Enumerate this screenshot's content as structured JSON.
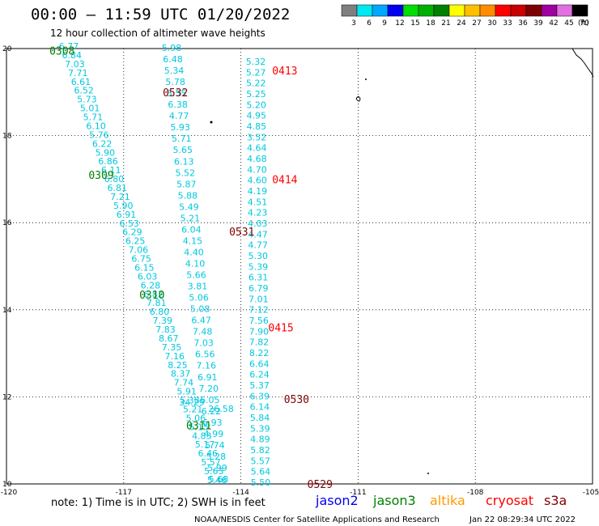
{
  "title": "00:00 – 11:59 UTC 01/20/2022",
  "subtitle": "12 hour collection of altimeter wave heights",
  "legend": {
    "unit": "(ft)",
    "bins": [
      {
        "label": "3",
        "color": "#7f7f7f"
      },
      {
        "label": "6",
        "color": "#00e8f0"
      },
      {
        "label": "9",
        "color": "#00a8ff"
      },
      {
        "label": "12",
        "color": "#0000ee"
      },
      {
        "label": "15",
        "color": "#00dd00"
      },
      {
        "label": "18",
        "color": "#00b000"
      },
      {
        "label": "21",
        "color": "#007f00"
      },
      {
        "label": "24",
        "color": "#ffff00"
      },
      {
        "label": "27",
        "color": "#ffc000"
      },
      {
        "label": "30",
        "color": "#ff8c00"
      },
      {
        "label": "33",
        "color": "#ff0000"
      },
      {
        "label": "36",
        "color": "#c80000"
      },
      {
        "label": "39",
        "color": "#7f0000"
      },
      {
        "label": "42",
        "color": "#a000a0"
      },
      {
        "label": "45",
        "color": "#e070e0"
      },
      {
        "label": "70",
        "color": "#000000"
      }
    ]
  },
  "axes": {
    "lon_ticks": [
      "-120",
      "-117",
      "-114",
      "-111",
      "-108",
      "-105"
    ],
    "lat_ticks": [
      "20",
      "18",
      "16",
      "14",
      "12",
      "10"
    ]
  },
  "colors": {
    "jason2": "#0000ee",
    "jason3": "#008000",
    "altika": "#ff9900",
    "cryosat": "#ff0000",
    "s3a": "#800000",
    "swh_text": "#00c8e0"
  },
  "passes": [
    {
      "label": "0308",
      "lat": 19.95,
      "lon": -118.9,
      "color": "#008000"
    },
    {
      "label": "0309",
      "lat": 17.1,
      "lon": -117.9,
      "color": "#008000"
    },
    {
      "label": "0310",
      "lat": 14.35,
      "lon": -116.6,
      "color": "#008000"
    },
    {
      "label": "0311",
      "lat": 11.35,
      "lon": -115.4,
      "color": "#008000"
    },
    {
      "label": "0413",
      "lat": 19.5,
      "lon": -113.2,
      "color": "#ff0000"
    },
    {
      "label": "0414",
      "lat": 17.0,
      "lon": -113.2,
      "color": "#ff0000"
    },
    {
      "label": "0415",
      "lat": 13.6,
      "lon": -113.3,
      "color": "#ff0000"
    },
    {
      "label": "0532",
      "lat": 19.0,
      "lon": -116.0,
      "color": "#800000"
    },
    {
      "label": "0531",
      "lat": 15.8,
      "lon": -114.3,
      "color": "#800000"
    },
    {
      "label": "0530",
      "lat": 11.95,
      "lon": -112.9,
      "color": "#800000"
    },
    {
      "label": "0529",
      "lat": 10.0,
      "lon": -112.3,
      "color": "#800000"
    }
  ],
  "track_a": [
    "6.77",
    "6.84",
    "7.03",
    "7.71",
    "6.61",
    "6.52",
    "5.73",
    "5.01",
    "5.71",
    "6.10",
    "5.76",
    "6.22",
    "5.90",
    "6.86",
    "6.11",
    "6.80",
    "6.81",
    "7.21",
    "5.90",
    "6.91",
    "6.53",
    "6.29",
    "6.25",
    "7.06",
    "6.75",
    "6.15",
    "6.03",
    "6.28",
    "6.82",
    "7.81",
    "6.80",
    "7.39",
    "7.83",
    "8.67",
    "7.35",
    "7.16",
    "8.25",
    "8.37",
    "7.74",
    "5.91",
    "5.38",
    "5.21",
    "5.06",
    "5.15",
    "4.83",
    "5.17",
    "6.46",
    "5.57",
    "5.63",
    "5.46"
  ],
  "track_b": [
    "5.98",
    "6.48",
    "5.34",
    "5.78",
    "5.55",
    "6.38",
    "4.77",
    "5.93",
    "5.71",
    "5.65",
    "6.13",
    "5.52",
    "5.87",
    "5.88",
    "5.49",
    "5.21",
    "6.04",
    "4.15",
    "4.40",
    "4.10",
    "5.66",
    "3.81",
    "5.06",
    "5.08",
    "6.47",
    "7.48",
    "7.03",
    "6.56",
    "7.16",
    "6.91",
    "7.20",
    "6.05",
    "6.22",
    "6.93",
    "4.99",
    "5.74",
    "5.28",
    "5.99",
    "5.68"
  ],
  "track_c": [
    "5.32",
    "5.27",
    "5.22",
    "5.25",
    "5.20",
    "4.95",
    "4.85",
    "3.52",
    "4.64",
    "4.68",
    "4.70",
    "4.60",
    "4.19",
    "4.51",
    "4.23",
    "4.03",
    "4.47",
    "4.77",
    "5.30",
    "5.39",
    "6.31",
    "6.79",
    "7.01",
    "7.12",
    "7.56",
    "7.90",
    "7.82",
    "8.22",
    "6.64",
    "6.24",
    "5.37",
    "6.39",
    "6.14",
    "5.84",
    "5.39",
    "4.89",
    "5.82",
    "5.57",
    "5.64",
    "5.50"
  ],
  "extra": [
    {
      "value": "34.29",
      "color": "#c80000"
    },
    {
      "value": "26.58",
      "color": "#ffb000"
    }
  ],
  "note": "note:  1) Time is in UTC;  2) SWH is in feet",
  "satellites": [
    "jason2",
    "jason3",
    "altika",
    "cryosat",
    "s3a"
  ],
  "credit_left": "NOAA/NESDIS Center for Satellite Applications and Research",
  "credit_right": "Jan 22 08:29:34 UTC 2022"
}
